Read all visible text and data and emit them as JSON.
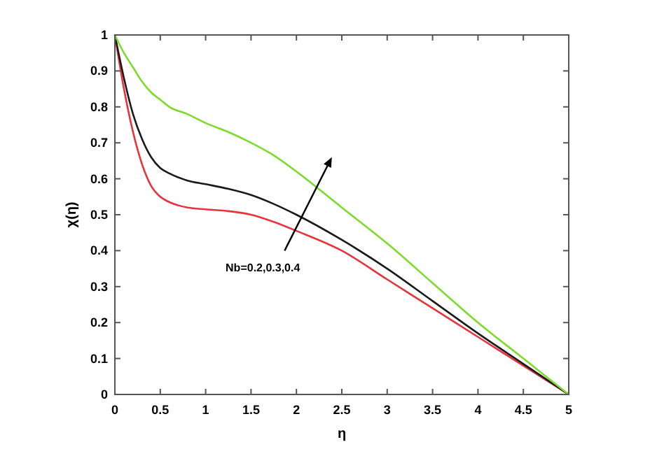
{
  "chart_data": {
    "type": "line",
    "xlabel": "η",
    "ylabel": "χ(η)",
    "annotations": [
      "Nb=0.2,0.3,0.4"
    ],
    "x": [
      0,
      0.1,
      0.2,
      0.3,
      0.4,
      0.5,
      0.6,
      0.8,
      1,
      1.25,
      1.5,
      1.75,
      2,
      2.5,
      3,
      3.5,
      4,
      4.5,
      5
    ],
    "series": [
      {
        "color": "#e8323c",
        "values": [
          1,
          0.85,
          0.73,
          0.64,
          0.58,
          0.55,
          0.535,
          0.52,
          0.515,
          0.51,
          0.5,
          0.48,
          0.455,
          0.4,
          0.32,
          0.24,
          0.16,
          0.08,
          0
        ]
      },
      {
        "color": "#1a1a1a",
        "values": [
          1,
          0.88,
          0.78,
          0.71,
          0.66,
          0.63,
          0.615,
          0.595,
          0.585,
          0.572,
          0.555,
          0.53,
          0.5,
          0.43,
          0.35,
          0.26,
          0.17,
          0.085,
          0
        ]
      },
      {
        "color": "#7ddc2a",
        "values": [
          1,
          0.95,
          0.91,
          0.87,
          0.84,
          0.82,
          0.8,
          0.78,
          0.755,
          0.73,
          0.7,
          0.665,
          0.62,
          0.52,
          0.42,
          0.31,
          0.2,
          0.1,
          0
        ]
      }
    ],
    "xlim": [
      0,
      5
    ],
    "xticks": [
      0,
      0.5,
      1,
      1.5,
      2,
      2.5,
      3,
      3.5,
      4,
      4.5,
      5
    ],
    "ylim": [
      0,
      1
    ],
    "yticks": [
      0,
      0.1,
      0.2,
      0.3,
      0.4,
      0.5,
      0.6,
      0.7,
      0.8,
      0.9,
      1
    ],
    "grid": false,
    "marker": "none",
    "line_style": "solid"
  }
}
